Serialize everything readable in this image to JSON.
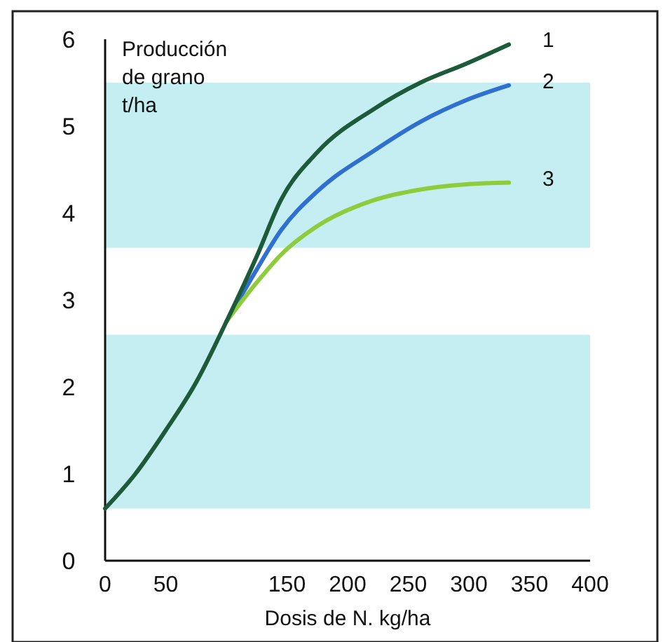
{
  "chart_data": {
    "type": "line",
    "xlabel": "Dosis de N. kg/ha",
    "ylabel": "Producción de grano t/ha",
    "xlim": [
      0,
      400
    ],
    "ylim": [
      0,
      6
    ],
    "xticks": [
      0,
      50,
      150,
      200,
      250,
      300,
      350,
      400
    ],
    "yticks": [
      0,
      1,
      2,
      3,
      4,
      5,
      6
    ],
    "grid": false,
    "marker": "none",
    "line_style": "solid",
    "bands": [
      {
        "axis": "y",
        "from": 0.6,
        "to": 2.6,
        "color": "#c4eef2"
      },
      {
        "axis": "y",
        "from": 3.6,
        "to": 5.5,
        "color": "#c4eef2"
      }
    ],
    "series": [
      {
        "name": "2",
        "color": "#2f6fd0",
        "x": [
          100,
          125,
          145,
          175,
          222,
          260,
          298,
          333
        ],
        "values": [
          2.75,
          3.35,
          3.8,
          4.25,
          4.72,
          5.05,
          5.3,
          5.47
        ]
      },
      {
        "name": "3",
        "color": "#8fcc3c",
        "x": [
          100,
          125,
          145,
          175,
          222,
          260,
          298,
          333
        ],
        "values": [
          2.75,
          3.2,
          3.52,
          3.85,
          4.15,
          4.27,
          4.33,
          4.35
        ]
      },
      {
        "name": "1",
        "color": "#1d5a3a",
        "x": [
          0,
          25,
          50,
          75,
          100,
          125,
          145,
          175,
          222,
          260,
          298,
          333
        ],
        "values": [
          0.6,
          1.0,
          1.5,
          2.05,
          2.75,
          3.5,
          4.15,
          4.7,
          5.2,
          5.5,
          5.72,
          5.94
        ]
      }
    ]
  }
}
